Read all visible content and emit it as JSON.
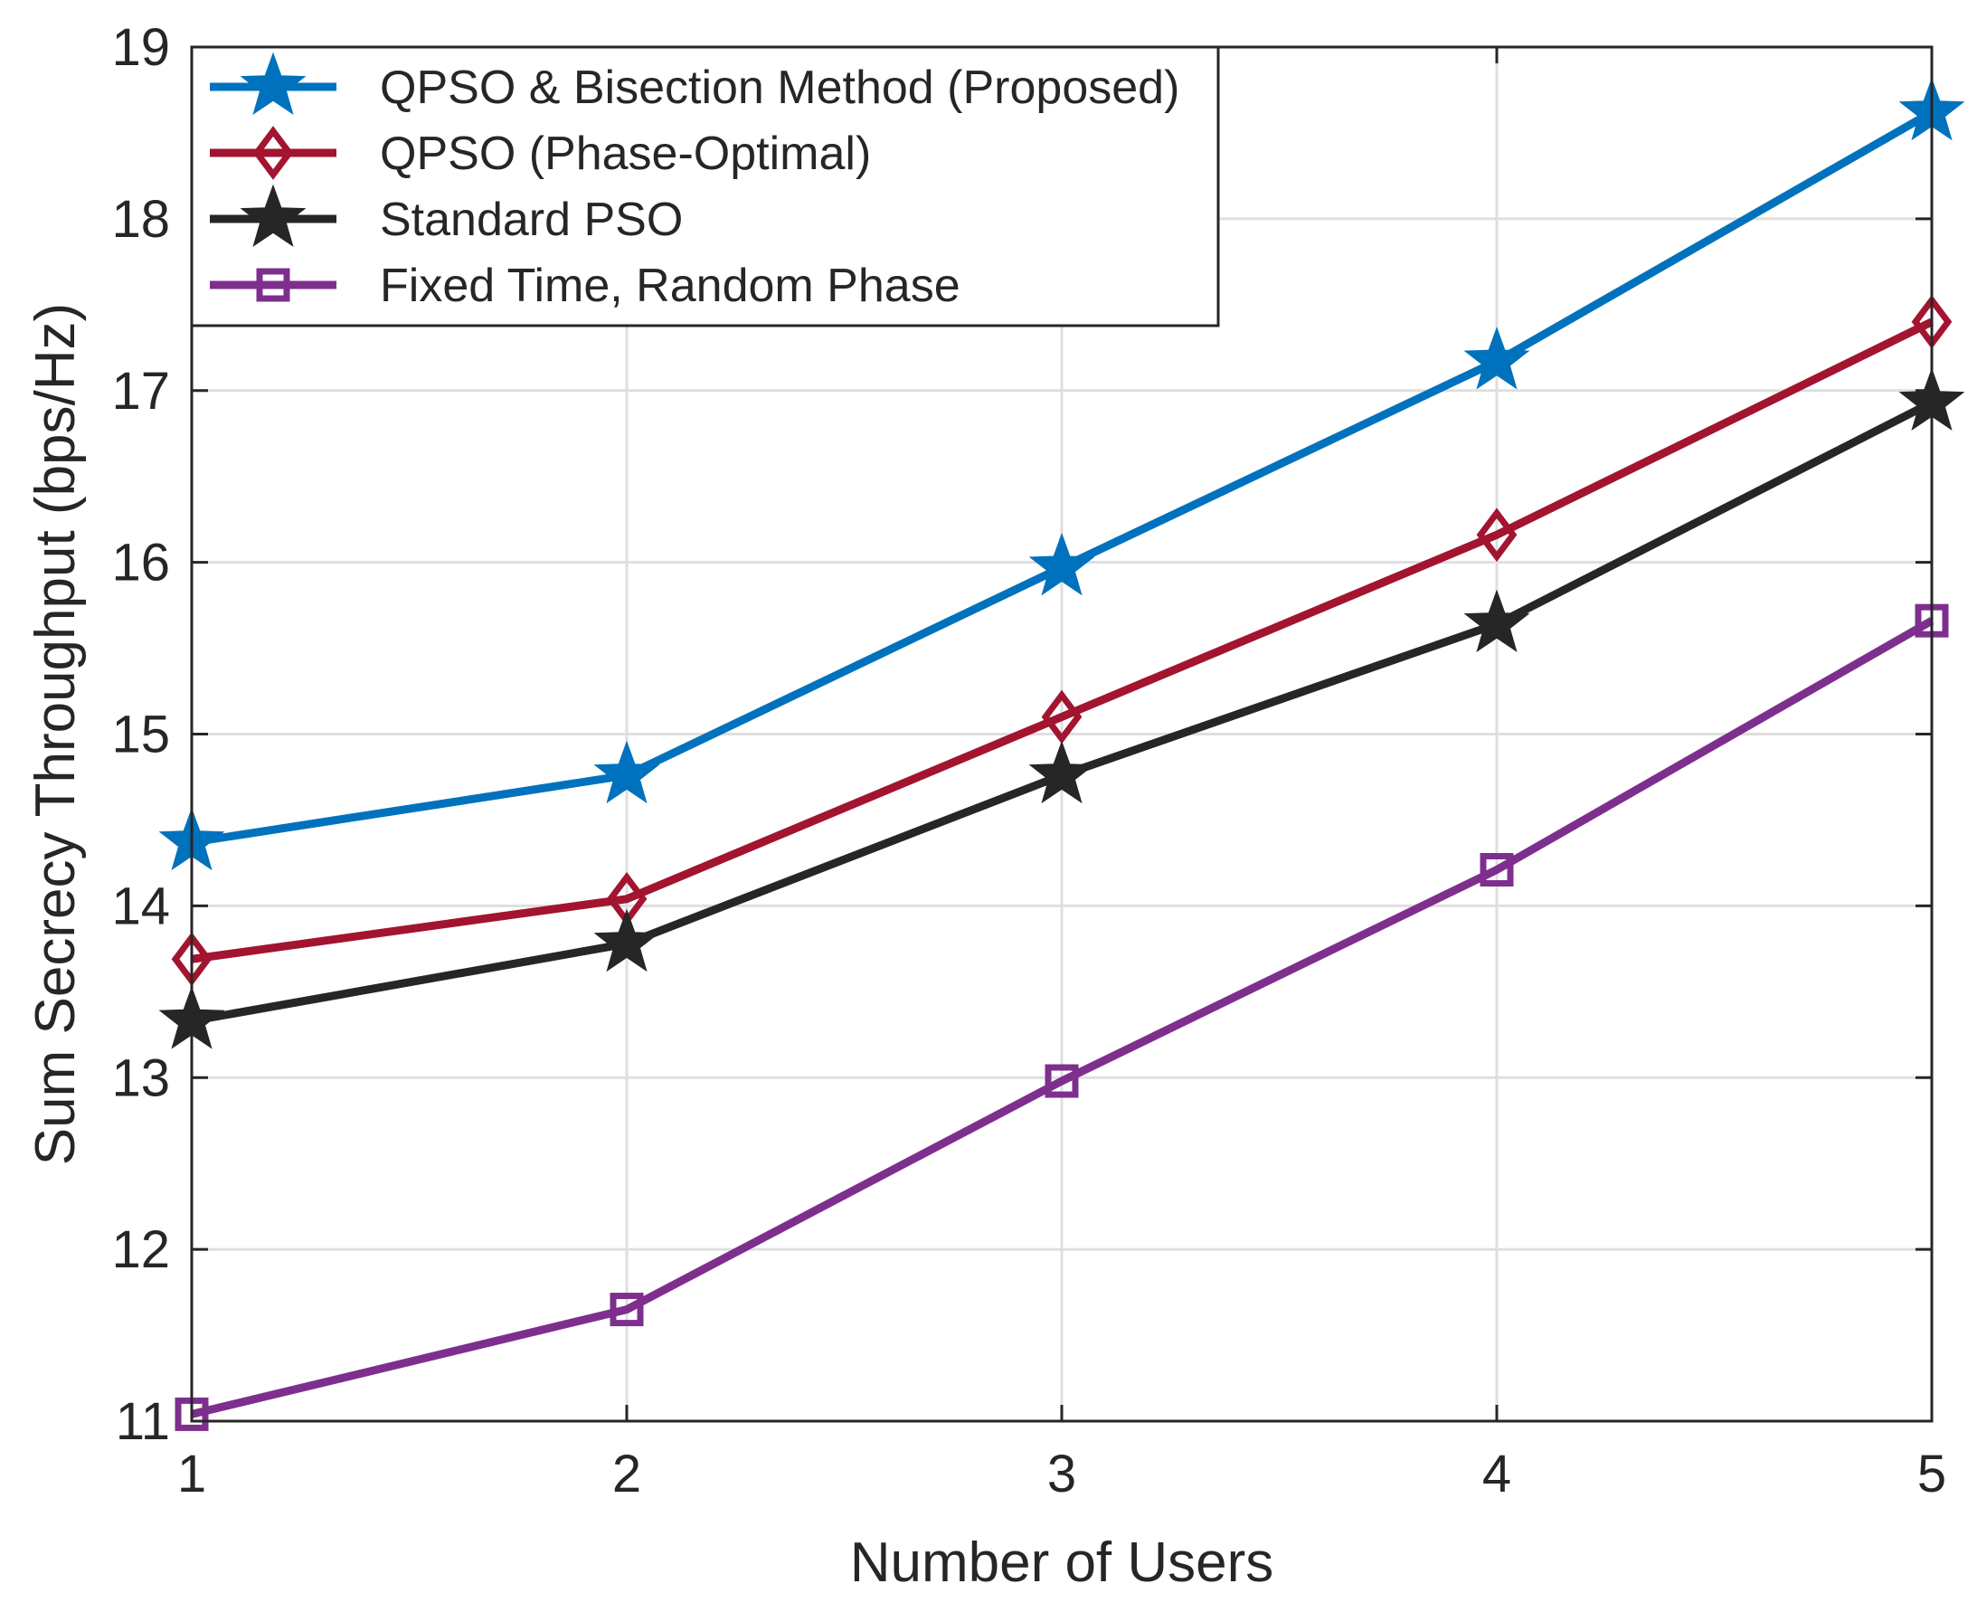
{
  "chart_data": {
    "type": "line",
    "title": "",
    "xlabel": "Number of Users",
    "ylabel": "Sum Secrecy Throughput (bps/Hz)",
    "x": [
      1,
      2,
      3,
      4,
      5
    ],
    "xlim": [
      1,
      5
    ],
    "ylim": [
      11,
      19
    ],
    "xticks": [
      1,
      2,
      3,
      4,
      5
    ],
    "yticks": [
      11,
      12,
      13,
      14,
      15,
      16,
      17,
      18,
      19
    ],
    "grid": true,
    "legend_position": "top-left",
    "series": [
      {
        "name": "QPSO & Bisection Method (Proposed)",
        "color": "#0072BD",
        "marker": "star",
        "values": [
          14.37,
          14.76,
          15.97,
          17.17,
          18.62
        ]
      },
      {
        "name": "QPSO (Phase-Optimal)",
        "color": "#A2142F",
        "marker": "diamond",
        "values": [
          13.69,
          14.04,
          15.1,
          16.16,
          17.4
        ]
      },
      {
        "name": "Standard PSO",
        "color": "#262626",
        "marker": "star",
        "values": [
          13.33,
          13.78,
          14.76,
          15.64,
          16.93
        ]
      },
      {
        "name": "Fixed Time, Random Phase",
        "color": "#7E2F8E",
        "marker": "square",
        "values": [
          11.04,
          11.65,
          12.98,
          14.21,
          15.66
        ]
      }
    ]
  }
}
